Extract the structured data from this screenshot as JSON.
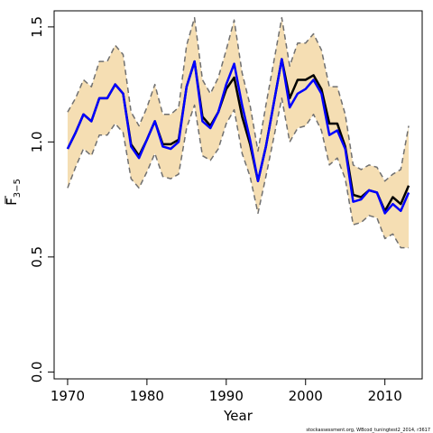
{
  "chart_data": {
    "type": "line",
    "xlabel": "Year",
    "ylabel_main": "F",
    "ylabel_sub": "3−5",
    "credit": "stockassessment.org, WBcod_tuningtest2_2014, r3617",
    "xlim": [
      1968.3,
      2014.7
    ],
    "ylim": [
      -0.03,
      1.57
    ],
    "x_ticks": [
      1970,
      1980,
      1990,
      2000,
      2010
    ],
    "x_tick_labels": [
      "1970",
      "1980",
      "1990",
      "2000",
      "2010"
    ],
    "y_ticks": [
      0.0,
      0.5,
      1.0,
      1.5
    ],
    "y_tick_labels": [
      "0.0",
      "0.5",
      "1.0",
      "1.5"
    ],
    "x": [
      1970,
      1971,
      1972,
      1973,
      1974,
      1975,
      1976,
      1977,
      1978,
      1979,
      1980,
      1981,
      1982,
      1983,
      1984,
      1985,
      1986,
      1987,
      1988,
      1989,
      1990,
      1991,
      1992,
      1993,
      1994,
      1995,
      1996,
      1997,
      1998,
      1999,
      2000,
      2001,
      2002,
      2003,
      2004,
      2005,
      2006,
      2007,
      2008,
      2009,
      2010,
      2011,
      2012,
      2013
    ],
    "band": {
      "color": "#F5DEB3",
      "upper": [
        1.13,
        1.19,
        1.27,
        1.24,
        1.35,
        1.35,
        1.42,
        1.38,
        1.13,
        1.07,
        1.15,
        1.25,
        1.12,
        1.12,
        1.15,
        1.42,
        1.54,
        1.27,
        1.21,
        1.28,
        1.4,
        1.53,
        1.3,
        1.16,
        0.96,
        1.16,
        1.35,
        1.54,
        1.33,
        1.43,
        1.43,
        1.47,
        1.4,
        1.24,
        1.24,
        1.12,
        0.9,
        0.88,
        0.9,
        0.89,
        0.83,
        0.86,
        0.88,
        1.07
      ],
      "lower": [
        0.8,
        0.89,
        0.97,
        0.94,
        1.03,
        1.03,
        1.08,
        1.04,
        0.84,
        0.8,
        0.87,
        0.95,
        0.85,
        0.84,
        0.86,
        1.06,
        1.16,
        0.94,
        0.92,
        0.97,
        1.08,
        1.14,
        0.95,
        0.85,
        0.69,
        0.85,
        1.02,
        1.19,
        1.0,
        1.06,
        1.07,
        1.12,
        1.05,
        0.9,
        0.93,
        0.84,
        0.64,
        0.65,
        0.68,
        0.67,
        0.58,
        0.6,
        0.54,
        0.54
      ]
    },
    "series": [
      {
        "color": "#000000",
        "values": [
          0.97,
          1.04,
          1.12,
          1.09,
          1.19,
          1.19,
          1.25,
          1.21,
          0.99,
          0.94,
          1.01,
          1.09,
          0.99,
          0.99,
          1.01,
          1.24,
          1.35,
          1.11,
          1.07,
          1.13,
          1.23,
          1.28,
          1.11,
          0.99,
          0.83,
          0.98,
          1.17,
          1.36,
          1.19,
          1.27,
          1.27,
          1.29,
          1.23,
          1.08,
          1.08,
          0.98,
          0.77,
          0.76,
          0.79,
          0.78,
          0.7,
          0.76,
          0.73,
          0.81
        ]
      },
      {
        "color": "#0000FF",
        "values": [
          0.97,
          1.04,
          1.12,
          1.09,
          1.19,
          1.19,
          1.25,
          1.21,
          0.98,
          0.93,
          1.01,
          1.09,
          0.98,
          0.97,
          1.0,
          1.24,
          1.35,
          1.09,
          1.06,
          1.13,
          1.25,
          1.34,
          1.16,
          1.01,
          0.83,
          0.98,
          1.17,
          1.36,
          1.15,
          1.21,
          1.23,
          1.27,
          1.21,
          1.03,
          1.05,
          0.97,
          0.74,
          0.75,
          0.79,
          0.78,
          0.69,
          0.73,
          0.7,
          0.78
        ]
      },
      {
        "color": "#707070",
        "dashed": true,
        "values": [
          1.13,
          1.19,
          1.27,
          1.24,
          1.35,
          1.35,
          1.42,
          1.38,
          1.13,
          1.07,
          1.15,
          1.25,
          1.12,
          1.12,
          1.15,
          1.42,
          1.54,
          1.27,
          1.21,
          1.28,
          1.4,
          1.53,
          1.3,
          1.16,
          0.96,
          1.16,
          1.35,
          1.54,
          1.33,
          1.43,
          1.43,
          1.47,
          1.4,
          1.24,
          1.24,
          1.12,
          0.9,
          0.88,
          0.9,
          0.89,
          0.83,
          0.86,
          0.88,
          1.07
        ]
      },
      {
        "color": "#707070",
        "dashed": true,
        "values": [
          0.8,
          0.89,
          0.97,
          0.94,
          1.03,
          1.03,
          1.08,
          1.04,
          0.84,
          0.8,
          0.87,
          0.95,
          0.85,
          0.84,
          0.86,
          1.06,
          1.16,
          0.94,
          0.92,
          0.97,
          1.08,
          1.14,
          0.95,
          0.85,
          0.69,
          0.85,
          1.02,
          1.19,
          1.0,
          1.06,
          1.07,
          1.12,
          1.05,
          0.9,
          0.93,
          0.84,
          0.64,
          0.65,
          0.68,
          0.67,
          0.58,
          0.6,
          0.54,
          0.54
        ]
      }
    ]
  }
}
